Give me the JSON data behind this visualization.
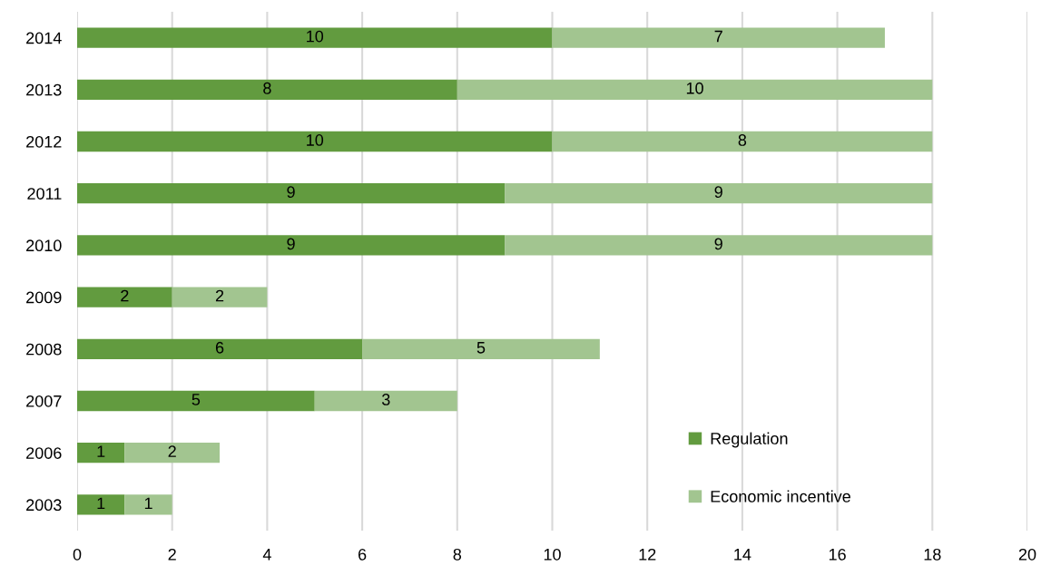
{
  "chart_data": {
    "type": "bar",
    "orientation": "horizontal",
    "stacked": true,
    "categories": [
      "2014",
      "2013",
      "2012",
      "2011",
      "2010",
      "2009",
      "2008",
      "2007",
      "2006",
      "2003"
    ],
    "series": [
      {
        "name": "Regulation",
        "color": "#629b3f",
        "values": [
          10,
          8,
          10,
          9,
          9,
          2,
          6,
          5,
          1,
          1
        ]
      },
      {
        "name": "Economic incentive",
        "color": "#a2c590",
        "values": [
          7,
          10,
          8,
          9,
          9,
          2,
          5,
          3,
          2,
          1
        ]
      }
    ],
    "xlim": [
      0,
      20
    ],
    "xticks": [
      0,
      2,
      4,
      6,
      8,
      10,
      12,
      14,
      16,
      18,
      20
    ],
    "grid": "x",
    "legend": "bottom right",
    "data_labels": true
  }
}
